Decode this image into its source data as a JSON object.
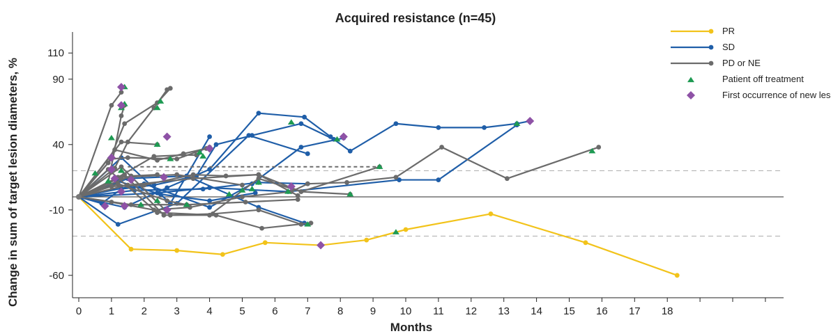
{
  "chart_data": {
    "type": "line",
    "title": "Acquired resistance (n=45)",
    "xlabel": "Months",
    "ylabel": "Change in sum of target lesion diameters, %",
    "xlim": [
      0,
      20.9
    ],
    "ylim": [
      -75,
      130
    ],
    "xticks": [
      0,
      1,
      2,
      3,
      4,
      5,
      6,
      7,
      8,
      9,
      10,
      11,
      12,
      13,
      14,
      15,
      16,
      17,
      18
    ],
    "yticks": [
      -60,
      -10,
      40,
      90,
      110
    ],
    "reference_lines": {
      "solid": 0,
      "dashed": [
        20,
        -30
      ]
    },
    "colors": {
      "PR": "#f2c31a",
      "SD": "#1f5ea8",
      "PD": "#6b6b6b",
      "off": "#1e9a52",
      "new": "#8e52a6"
    },
    "legend": {
      "position": "top-right",
      "entries": [
        {
          "label": "PR",
          "kind": "line",
          "color": "#f2c31a"
        },
        {
          "label": "SD",
          "kind": "line",
          "color": "#1f5ea8"
        },
        {
          "label": "PD or NE",
          "kind": "line",
          "color": "#6b6b6b"
        },
        {
          "label": "Patient off treatment",
          "kind": "triangle",
          "color": "#1e9a52"
        },
        {
          "label": "First occurrence of new lesion",
          "kind": "diamond",
          "color": "#8e52a6"
        }
      ]
    },
    "series": [
      {
        "group": "PR",
        "points": [
          [
            0,
            0
          ],
          [
            1.6,
            -40
          ],
          [
            3,
            -41
          ],
          [
            4.4,
            -44
          ],
          [
            5.7,
            -35
          ],
          [
            7.4,
            -37
          ],
          [
            8.8,
            -33
          ],
          [
            10,
            -25
          ],
          [
            12.6,
            -13
          ],
          [
            15.5,
            -35
          ],
          [
            18.3,
            -60
          ]
        ]
      },
      {
        "group": "SD",
        "points": [
          [
            0,
            0
          ],
          [
            0.7,
            -5
          ],
          [
            1.3,
            6
          ],
          [
            2.3,
            9
          ],
          [
            3.6,
            16
          ],
          [
            4.2,
            40
          ],
          [
            5.3,
            47
          ],
          [
            6.8,
            56
          ],
          [
            7.8,
            44
          ],
          [
            8.3,
            35
          ],
          [
            9.7,
            56
          ],
          [
            11,
            53
          ],
          [
            12.4,
            53
          ],
          [
            13.4,
            56
          ],
          [
            13.8,
            58
          ]
        ]
      },
      {
        "group": "SD",
        "points": [
          [
            0,
            0
          ],
          [
            1.4,
            -8
          ],
          [
            2.7,
            7
          ],
          [
            4,
            21
          ],
          [
            5.5,
            64
          ],
          [
            6.9,
            61
          ],
          [
            7.7,
            46
          ]
        ]
      },
      {
        "group": "SD",
        "points": [
          [
            0,
            0
          ],
          [
            1.3,
            30
          ],
          [
            2.8,
            -5
          ],
          [
            4,
            46
          ]
        ]
      },
      {
        "group": "SD",
        "points": [
          [
            0,
            0
          ],
          [
            1.2,
            -21
          ],
          [
            3,
            -5
          ],
          [
            5.2,
            47
          ],
          [
            7,
            33
          ]
        ]
      },
      {
        "group": "SD",
        "points": [
          [
            0,
            0
          ],
          [
            2,
            10
          ],
          [
            4,
            -8
          ],
          [
            5.3,
            10
          ],
          [
            6.8,
            38
          ],
          [
            8.1,
            45
          ]
        ]
      },
      {
        "group": "SD",
        "points": [
          [
            0,
            0
          ],
          [
            1.5,
            14
          ],
          [
            3.3,
            16
          ],
          [
            5.5,
            -8
          ],
          [
            6.9,
            -20
          ]
        ]
      },
      {
        "group": "SD",
        "points": [
          [
            0,
            0
          ],
          [
            1.7,
            5
          ],
          [
            3.8,
            6
          ],
          [
            5.5,
            11
          ],
          [
            7,
            10
          ]
        ]
      },
      {
        "group": "SD",
        "points": [
          [
            0,
            0
          ],
          [
            2.4,
            3
          ],
          [
            4,
            7
          ],
          [
            6.4,
            4
          ],
          [
            9.8,
            13
          ],
          [
            11,
            13
          ],
          [
            13.4,
            55
          ]
        ]
      },
      {
        "group": "SD",
        "points": [
          [
            0,
            0
          ],
          [
            1.2,
            12
          ],
          [
            2.5,
            2
          ],
          [
            4,
            -3
          ],
          [
            5.4,
            3
          ]
        ]
      },
      {
        "group": "PD",
        "points": [
          [
            0,
            0
          ],
          [
            0.9,
            11
          ],
          [
            1.3,
            62
          ],
          [
            1.4,
            70
          ]
        ]
      },
      {
        "group": "PD",
        "points": [
          [
            0,
            0
          ],
          [
            1,
            70
          ],
          [
            1.3,
            80
          ]
        ]
      },
      {
        "group": "PD",
        "points": [
          [
            0,
            0
          ],
          [
            0.9,
            26
          ],
          [
            1.4,
            56
          ],
          [
            2.4,
            72
          ],
          [
            2.8,
            83
          ]
        ]
      },
      {
        "group": "PD",
        "points": [
          [
            0,
            0
          ],
          [
            1.1,
            22
          ],
          [
            1.5,
            42
          ],
          [
            2.3,
            68
          ],
          [
            2.7,
            82
          ]
        ]
      },
      {
        "group": "PD",
        "points": [
          [
            0,
            0
          ],
          [
            1.3,
            42
          ],
          [
            2.4,
            40
          ]
        ]
      },
      {
        "group": "PD",
        "points": [
          [
            0,
            0
          ],
          [
            1,
            29
          ],
          [
            1.5,
            30
          ],
          [
            3,
            29
          ],
          [
            4,
            38
          ]
        ]
      },
      {
        "group": "PD",
        "points": [
          [
            0,
            0
          ],
          [
            1.1,
            36
          ],
          [
            2.4,
            28
          ],
          [
            3.2,
            33
          ],
          [
            3.9,
            37
          ]
        ]
      },
      {
        "group": "PD",
        "points": [
          [
            0,
            0
          ],
          [
            1.2,
            15
          ],
          [
            2.3,
            31
          ],
          [
            3.2,
            32
          ],
          [
            3.6,
            32
          ]
        ]
      },
      {
        "group": "PD",
        "points": [
          [
            0,
            0
          ],
          [
            0.9,
            21
          ],
          [
            2.4,
            -12
          ],
          [
            4.2,
            -14
          ],
          [
            5.6,
            -24
          ],
          [
            7.1,
            -20
          ]
        ]
      },
      {
        "group": "PD",
        "points": [
          [
            0,
            0
          ],
          [
            1.3,
            23
          ],
          [
            2.8,
            -14
          ],
          [
            4.1,
            -13
          ],
          [
            5.5,
            -10
          ],
          [
            6.8,
            -21
          ]
        ]
      },
      {
        "group": "PD",
        "points": [
          [
            0,
            0
          ],
          [
            1.5,
            9
          ],
          [
            3.5,
            14
          ],
          [
            5.5,
            17
          ],
          [
            6.8,
            4
          ],
          [
            8.3,
            2
          ]
        ]
      },
      {
        "group": "PD",
        "points": [
          [
            0,
            0
          ],
          [
            1,
            -4
          ],
          [
            2.3,
            -10
          ],
          [
            3.4,
            -8
          ],
          [
            5,
            0
          ],
          [
            6.5,
            4
          ],
          [
            7,
            10
          ],
          [
            8.2,
            11
          ],
          [
            9.7,
            15
          ],
          [
            11.1,
            38
          ],
          [
            13.1,
            14
          ],
          [
            15.9,
            38
          ]
        ]
      },
      {
        "group": "PD",
        "points": [
          [
            0,
            0
          ],
          [
            1.4,
            17
          ],
          [
            2.6,
            -14
          ],
          [
            4,
            -14
          ],
          [
            5.5,
            14
          ],
          [
            6.8,
            4
          ],
          [
            9.2,
            23
          ]
        ]
      },
      {
        "group": "PD",
        "points": [
          [
            0,
            0
          ],
          [
            1.2,
            10
          ],
          [
            2.7,
            -3
          ],
          [
            3.3,
            -6
          ],
          [
            5.1,
            -4
          ],
          [
            6.7,
            -2
          ]
        ]
      },
      {
        "group": "PD",
        "points": [
          [
            0,
            0
          ],
          [
            1,
            8
          ],
          [
            2,
            9
          ],
          [
            3.5,
            17
          ],
          [
            4.5,
            16
          ],
          [
            5.5,
            17
          ],
          [
            6.7,
            1
          ]
        ]
      },
      {
        "group": "PD",
        "points": [
          [
            0,
            0
          ],
          [
            1.6,
            -6
          ],
          [
            3.3,
            -6
          ]
        ]
      },
      {
        "group": "PD",
        "points": [
          [
            0,
            0
          ],
          [
            1.3,
            15
          ],
          [
            3,
            17
          ],
          [
            5,
            9
          ]
        ]
      },
      {
        "group": "PD",
        "points": [
          [
            0,
            0
          ],
          [
            1.6,
            16
          ],
          [
            2.4,
            17
          ]
        ]
      },
      {
        "group": "PD",
        "dashed": true,
        "points": [
          [
            1.5,
            23
          ],
          [
            9.2,
            23
          ]
        ]
      },
      {
        "group": "PD",
        "dashed": true,
        "points": [
          [
            1.3,
            -6
          ],
          [
            2.6,
            -6
          ]
        ]
      }
    ],
    "off_treatment": [
      [
        1,
        45
      ],
      [
        1.3,
        68
      ],
      [
        1.4,
        71
      ],
      [
        1.4,
        84
      ],
      [
        1.3,
        20
      ],
      [
        0.9,
        12
      ],
      [
        0.5,
        18
      ],
      [
        2.4,
        40
      ],
      [
        2.4,
        68
      ],
      [
        2.5,
        73
      ],
      [
        2.8,
        29
      ],
      [
        3.8,
        31
      ],
      [
        3.7,
        34
      ],
      [
        1.9,
        -6
      ],
      [
        3.3,
        -6
      ],
      [
        2.4,
        -3
      ],
      [
        5,
        5
      ],
      [
        5.3,
        6
      ],
      [
        5.5,
        11
      ],
      [
        4.6,
        2
      ],
      [
        6.4,
        4
      ],
      [
        6.5,
        57
      ],
      [
        7,
        -21
      ],
      [
        7.9,
        44
      ],
      [
        8.3,
        2
      ],
      [
        9.2,
        23
      ],
      [
        9.7,
        -27
      ],
      [
        13.4,
        56
      ],
      [
        15.7,
        35
      ]
    ],
    "new_lesion": [
      [
        1.3,
        84
      ],
      [
        1.3,
        70
      ],
      [
        1,
        30
      ],
      [
        1.1,
        14
      ],
      [
        1.6,
        13
      ],
      [
        1.3,
        4
      ],
      [
        1.4,
        -7
      ],
      [
        0.8,
        -7
      ],
      [
        1,
        21
      ],
      [
        2.7,
        -10
      ],
      [
        2.7,
        46
      ],
      [
        2.6,
        15
      ],
      [
        4,
        37
      ],
      [
        6.5,
        8
      ],
      [
        7.4,
        -37
      ],
      [
        8.1,
        46
      ],
      [
        13.8,
        58
      ]
    ]
  }
}
